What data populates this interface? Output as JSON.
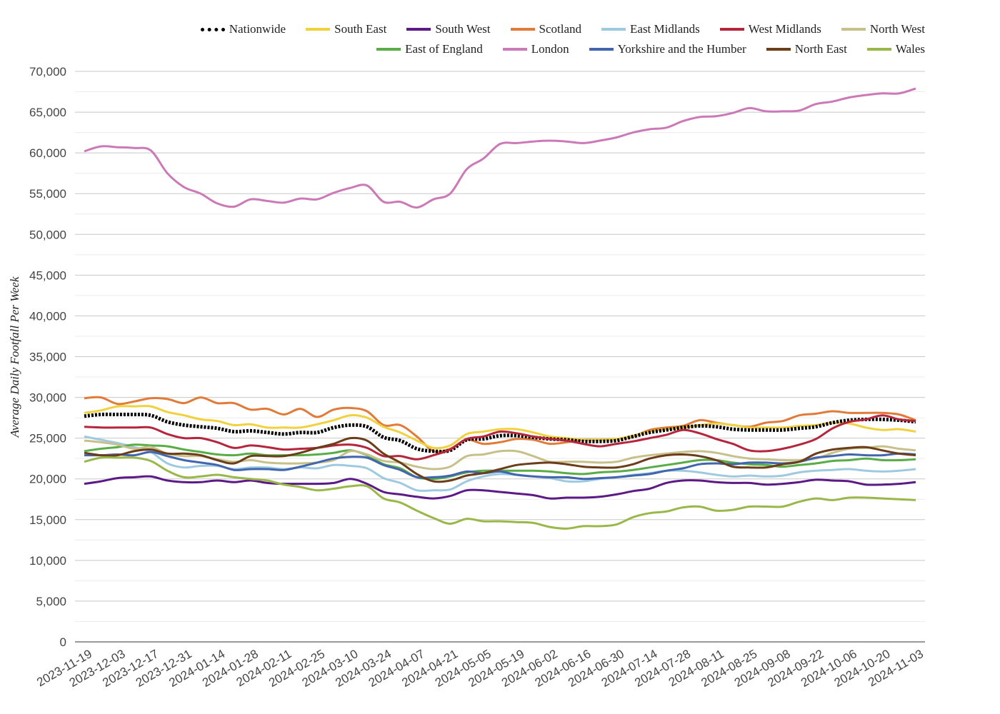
{
  "chart_data": {
    "type": "line",
    "ylabel": "Average Daily Footfall Per Week",
    "xlabel": "",
    "title": "",
    "ylim": [
      0,
      70000
    ],
    "yticks": [
      0,
      5000,
      10000,
      15000,
      20000,
      25000,
      30000,
      35000,
      40000,
      45000,
      50000,
      55000,
      60000,
      65000,
      70000
    ],
    "ytick_labels": [
      "0",
      "5,000",
      "10,000",
      "15,000",
      "20,000",
      "25,000",
      "30,000",
      "35,000",
      "40,000",
      "45,000",
      "50,000",
      "55,000",
      "60,000",
      "65,000",
      "70,000"
    ],
    "grid": true,
    "legend_position": "top-right",
    "x": [
      "2023-11-19",
      "2023-11-26",
      "2023-12-03",
      "2023-12-10",
      "2023-12-17",
      "2023-12-24",
      "2023-12-31",
      "2024-01-07",
      "2024-01-14",
      "2024-01-21",
      "2024-01-28",
      "2024-02-04",
      "2024-02-11",
      "2024-02-18",
      "2024-02-25",
      "2024-03-03",
      "2024-03-10",
      "2024-03-17",
      "2024-03-24",
      "2024-03-31",
      "2024-04-07",
      "2024-04-14",
      "2024-04-21",
      "2024-04-28",
      "2024-05-05",
      "2024-05-12",
      "2024-05-19",
      "2024-05-26",
      "2024-06-02",
      "2024-06-09",
      "2024-06-16",
      "2024-06-23",
      "2024-06-30",
      "2024-07-07",
      "2024-07-14",
      "2024-07-21",
      "2024-07-28",
      "2024-08-04",
      "2024-08-11",
      "2024-08-18",
      "2024-08-25",
      "2024-09-01",
      "2024-09-08",
      "2024-09-15",
      "2024-09-22",
      "2024-09-29",
      "2024-10-06",
      "2024-10-13",
      "2024-10-20",
      "2024-10-27",
      "2024-11-03"
    ],
    "x_tick_labels": [
      "2023-11-19",
      "2023-12-03",
      "2023-12-17",
      "2023-12-31",
      "2024-01-14",
      "2024-01-28",
      "2024-02-11",
      "2024-02-25",
      "2024-03-10",
      "2024-03-24",
      "2024-04-07",
      "2024-04-21",
      "2024-05-05",
      "2024-05-19",
      "2024-06-02",
      "2024-06-16",
      "2024-06-30",
      "2024-07-14",
      "2024-07-28",
      "2024-08-11",
      "2024-08-25",
      "2024-09-08",
      "2024-09-22",
      "2024-10-06",
      "2024-10-20",
      "2024-11-03"
    ],
    "series": [
      {
        "name": "London",
        "color": "#cc79b8",
        "dashed": false,
        "values": [
          60200,
          60800,
          60700,
          60600,
          60300,
          57500,
          55800,
          55000,
          53800,
          53400,
          54300,
          54100,
          53900,
          54400,
          54300,
          55100,
          55700,
          56000,
          54000,
          54000,
          53300,
          54300,
          55000,
          58000,
          59300,
          61100,
          61200,
          61400,
          61500,
          61400,
          61200,
          61500,
          61900,
          62500,
          62900,
          63100,
          63900,
          64400,
          64500,
          64900,
          65500,
          65100,
          65100,
          65200,
          66000,
          66300,
          66800,
          67100,
          67300,
          67300,
          67900
        ]
      },
      {
        "name": "Scotland",
        "color": "#e07b39",
        "dashed": false,
        "values": [
          29900,
          30000,
          29200,
          29500,
          29900,
          29800,
          29300,
          30000,
          29300,
          29300,
          28500,
          28600,
          27900,
          28600,
          27600,
          28500,
          28700,
          28300,
          26600,
          26600,
          25200,
          23400,
          23700,
          24800,
          24300,
          24500,
          24900,
          24800,
          24300,
          24500,
          24800,
          24800,
          24900,
          25200,
          26000,
          26300,
          26500,
          27200,
          26900,
          26600,
          26400,
          26900,
          27100,
          27800,
          28000,
          28300,
          28100,
          28100,
          28100,
          27900,
          27200
        ]
      },
      {
        "name": "South East",
        "color": "#f0d13e",
        "dashed": false,
        "values": [
          28100,
          28400,
          28900,
          28900,
          28900,
          28200,
          27800,
          27300,
          27100,
          26600,
          26700,
          26300,
          26300,
          26300,
          26700,
          27200,
          27800,
          27500,
          26400,
          25700,
          24700,
          23800,
          24100,
          25500,
          25800,
          26100,
          26100,
          25700,
          25200,
          25000,
          24800,
          24800,
          24900,
          25300,
          25800,
          26100,
          26300,
          26600,
          26800,
          26600,
          26300,
          26300,
          26300,
          26500,
          26600,
          26900,
          26800,
          26300,
          26000,
          26100,
          25800
        ]
      },
      {
        "name": "Nationwide",
        "color": "#000000",
        "dashed": true,
        "values": [
          27700,
          27900,
          27900,
          27900,
          27800,
          27000,
          26600,
          26400,
          26200,
          25800,
          25900,
          25700,
          25500,
          25700,
          25700,
          26300,
          26600,
          26400,
          25100,
          24700,
          23700,
          23400,
          23500,
          24800,
          24900,
          25300,
          25300,
          25100,
          24900,
          24800,
          24600,
          24600,
          24700,
          25200,
          25700,
          26000,
          26300,
          26500,
          26400,
          26100,
          26000,
          26000,
          26000,
          26200,
          26400,
          26900,
          27200,
          27300,
          27300,
          27200,
          27000
        ]
      },
      {
        "name": "West Midlands",
        "color": "#b5253b",
        "dashed": false,
        "values": [
          26400,
          26300,
          26300,
          26300,
          26300,
          25500,
          25000,
          25000,
          24500,
          23800,
          24100,
          23900,
          23600,
          23700,
          23800,
          24100,
          24200,
          23800,
          22800,
          22800,
          22400,
          22900,
          23600,
          24900,
          25200,
          25800,
          25600,
          25200,
          24900,
          24700,
          24300,
          24000,
          24300,
          24600,
          25000,
          25400,
          26000,
          25600,
          24900,
          24300,
          23500,
          23400,
          23700,
          24200,
          24900,
          26200,
          27000,
          27300,
          27800,
          27300,
          27100
        ]
      },
      {
        "name": "South West",
        "color": "#5c1a86",
        "dashed": false,
        "values": [
          19400,
          19700,
          20100,
          20200,
          20300,
          19800,
          19600,
          19600,
          19800,
          19600,
          19800,
          19500,
          19400,
          19400,
          19400,
          19500,
          20000,
          19400,
          18400,
          18100,
          17800,
          17600,
          17900,
          18600,
          18600,
          18400,
          18200,
          18000,
          17600,
          17700,
          17700,
          17800,
          18100,
          18500,
          18800,
          19500,
          19800,
          19800,
          19600,
          19500,
          19500,
          19300,
          19400,
          19600,
          19900,
          19800,
          19700,
          19300,
          19300,
          19400,
          19600
        ]
      },
      {
        "name": "East Midlands",
        "color": "#9ecae1",
        "dashed": false,
        "values": [
          25200,
          24800,
          24400,
          23900,
          23300,
          21900,
          21400,
          21600,
          21600,
          21200,
          21400,
          21400,
          21200,
          21400,
          21300,
          21700,
          21600,
          21300,
          20100,
          19500,
          18600,
          18600,
          18700,
          19700,
          20300,
          20600,
          20500,
          20300,
          20100,
          19700,
          19700,
          20000,
          20200,
          20500,
          20700,
          21000,
          21000,
          20800,
          20500,
          20300,
          20400,
          20300,
          20400,
          20800,
          21000,
          21100,
          21200,
          21000,
          20900,
          21000,
          21200
        ]
      },
      {
        "name": "East of England",
        "color": "#58ad47",
        "dashed": false,
        "values": [
          23400,
          23700,
          23900,
          24200,
          24100,
          24000,
          23600,
          23300,
          23000,
          22900,
          23100,
          22900,
          22900,
          22900,
          23000,
          23200,
          23500,
          22900,
          21800,
          21300,
          20200,
          20000,
          20300,
          20800,
          21000,
          21000,
          21000,
          21000,
          20900,
          20700,
          20600,
          20800,
          20900,
          21100,
          21400,
          21700,
          22000,
          22300,
          22300,
          22000,
          21800,
          21700,
          21500,
          21700,
          21900,
          22200,
          22300,
          22500,
          22300,
          22300,
          22400
        ]
      },
      {
        "name": "North West",
        "color": "#c8c08a",
        "dashed": false,
        "values": [
          24700,
          24500,
          24200,
          23700,
          23900,
          23100,
          22800,
          22800,
          22400,
          22100,
          22300,
          22000,
          21900,
          21900,
          22000,
          22300,
          23400,
          23000,
          22200,
          22000,
          21500,
          21200,
          21500,
          22800,
          23000,
          23400,
          23400,
          22800,
          22100,
          22100,
          22100,
          22000,
          22100,
          22600,
          22900,
          23100,
          23300,
          23400,
          23200,
          22800,
          22500,
          22400,
          22300,
          22300,
          22500,
          23200,
          23700,
          23800,
          24000,
          23700,
          23500
        ]
      },
      {
        "name": "Yorkshire and the Humber",
        "color": "#4266ad",
        "dashed": false,
        "values": [
          22900,
          22900,
          23000,
          22900,
          23300,
          22800,
          22300,
          22000,
          21700,
          21100,
          21200,
          21200,
          21100,
          21500,
          22000,
          22500,
          22700,
          22600,
          21700,
          21100,
          20200,
          20200,
          20400,
          20900,
          20700,
          20900,
          20500,
          20300,
          20200,
          20200,
          20000,
          20100,
          20200,
          20400,
          20600,
          21000,
          21300,
          21800,
          21900,
          21800,
          22000,
          22000,
          21900,
          22100,
          22600,
          22800,
          23000,
          22900,
          22900,
          23100,
          23000
        ]
      },
      {
        "name": "North East",
        "color": "#6b3d19",
        "dashed": false,
        "values": [
          23200,
          22900,
          22900,
          23400,
          23600,
          23100,
          23100,
          22900,
          22300,
          21900,
          22800,
          22800,
          22800,
          23200,
          23800,
          24300,
          25000,
          24700,
          23100,
          22000,
          20600,
          19700,
          19800,
          20400,
          20700,
          21200,
          21700,
          21900,
          22000,
          21800,
          21500,
          21400,
          21400,
          21800,
          22500,
          22900,
          23000,
          22800,
          22300,
          21500,
          21400,
          21400,
          21800,
          22100,
          23100,
          23600,
          23800,
          23900,
          23500,
          23100,
          22900
        ]
      },
      {
        "name": "Wales",
        "color": "#9ab84a",
        "dashed": false,
        "values": [
          22100,
          22600,
          22600,
          22600,
          22200,
          21000,
          20200,
          20300,
          20500,
          20200,
          20000,
          19800,
          19300,
          19000,
          18600,
          18800,
          19100,
          19100,
          17600,
          17100,
          16100,
          15200,
          14500,
          15100,
          14800,
          14800,
          14700,
          14600,
          14100,
          13900,
          14200,
          14200,
          14400,
          15300,
          15800,
          16000,
          16500,
          16600,
          16100,
          16200,
          16600,
          16600,
          16600,
          17200,
          17600,
          17400,
          17700,
          17700,
          17600,
          17500,
          17400
        ]
      }
    ],
    "legend_rows": [
      [
        "Nationwide",
        "South East",
        "South West",
        "Scotland",
        "East Midlands",
        "West Midlands",
        "North West"
      ],
      [
        "East of England",
        "London",
        "Yorkshire and the Humber",
        "North East",
        "Wales"
      ]
    ]
  }
}
